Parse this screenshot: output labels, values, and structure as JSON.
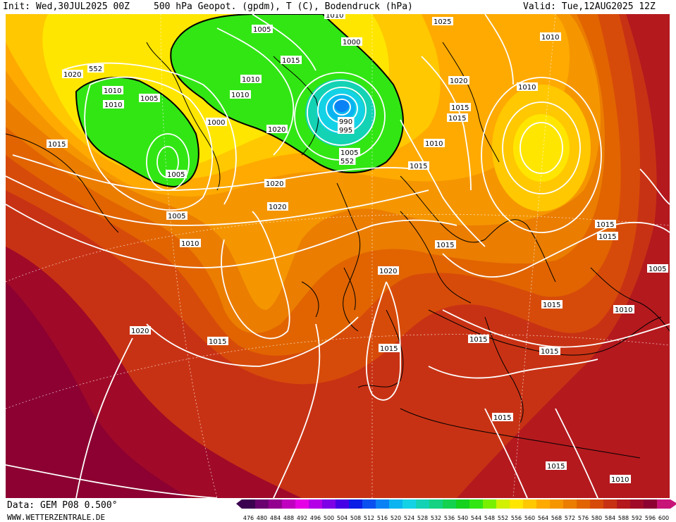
{
  "header": {
    "init": "Init: Wed,30JUL2025 00Z",
    "title": "500 hPa Geopot. (gpdm), T (C), Bodendruck (hPa)",
    "valid": "Valid: Tue,12AUG2025 12Z"
  },
  "footer": {
    "data_source": "Data: GEM P08 0.500°",
    "website": "WWW.WETTERZENTRALE.DE"
  },
  "legend": {
    "values": [
      "476",
      "480",
      "484",
      "488",
      "492",
      "496",
      "500",
      "504",
      "508",
      "512",
      "516",
      "520",
      "524",
      "528",
      "532",
      "536",
      "540",
      "544",
      "548",
      "552",
      "556",
      "560",
      "564",
      "568",
      "572",
      "576",
      "580",
      "584",
      "588",
      "592",
      "596",
      "600"
    ],
    "colors": [
      "#3c0050",
      "#6a006f",
      "#93008f",
      "#bf00bf",
      "#e600e6",
      "#b400e6",
      "#7d00e6",
      "#4600e6",
      "#0a1ee6",
      "#0a50f0",
      "#0a82f5",
      "#0ab4f0",
      "#14d2e6",
      "#14d2b4",
      "#14d282",
      "#14d250",
      "#14d21e",
      "#32e614",
      "#78f000",
      "#d2f000",
      "#ffe600",
      "#ffc800",
      "#ffaa00",
      "#f59600",
      "#eb7d00",
      "#e16400",
      "#d74b0a",
      "#c83214",
      "#b4191e",
      "#a00a28",
      "#8c0032",
      "#c81478"
    ]
  },
  "isobar_labels": [
    "1010",
    "1025",
    "1010",
    "1005",
    "1000",
    "1020",
    "1015",
    "1020",
    "1010",
    "1005",
    "1010",
    "1015",
    "1010",
    "1015",
    "990",
    "995",
    "1005",
    "552",
    "1010",
    "1015",
    "1000",
    "1020",
    "1005",
    "552",
    "1010",
    "1015",
    "1020",
    "1005",
    "1010",
    "1015",
    "1015",
    "1020",
    "1010",
    "1015",
    "1005",
    "1015",
    "1020",
    "1015",
    "1010",
    "1015",
    "1015",
    "1015",
    "1015",
    "1020",
    "1015",
    "1010"
  ],
  "map_layers": {
    "fill_colors": {
      "yellow": "#ffe600",
      "gold": "#ffc800",
      "orange_light": "#ffaa00",
      "orange": "#f59600",
      "orange_dark": "#eb7d00",
      "red_orange": "#e16400",
      "red_light": "#d74b0a",
      "red": "#c83214",
      "red_dark": "#b4191e",
      "crimson": "#a00a28",
      "green": "#32e614",
      "cyan": "#14d2e6",
      "blue": "#0a82f5"
    },
    "coastline_color": "#000000",
    "isobar_color": "#ffffff"
  }
}
